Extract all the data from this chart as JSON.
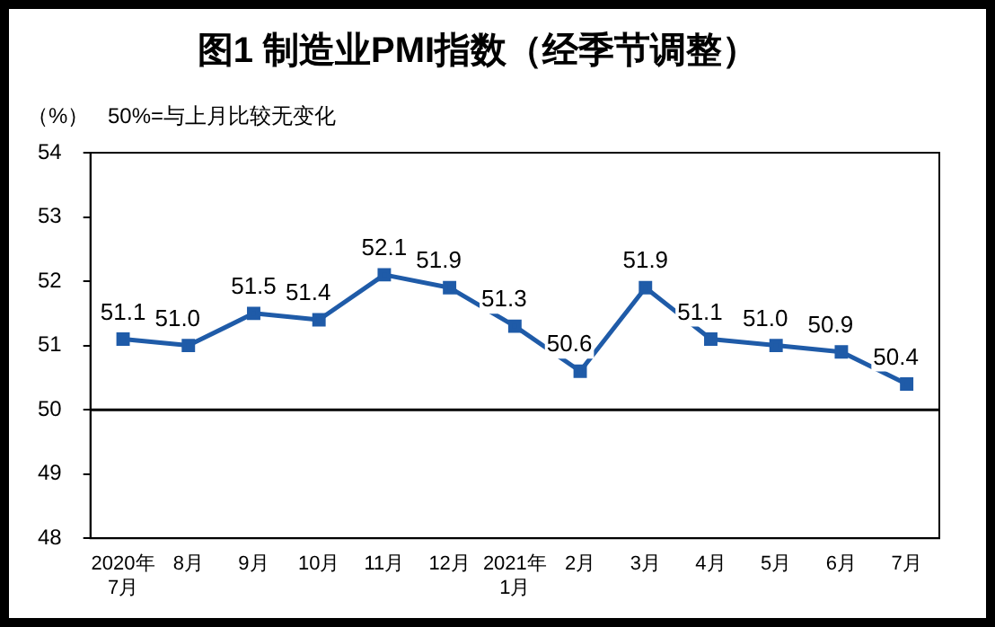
{
  "chart_data": {
    "type": "line",
    "title": "图1 制造业PMI指数（经季节调整）",
    "ylabel": "（%）",
    "annotations": [
      "50%=与上月比较无变化"
    ],
    "categories": [
      "2020年7月",
      "8月",
      "9月",
      "10月",
      "11月",
      "12月",
      "2021年1月",
      "2月",
      "3月",
      "4月",
      "5月",
      "6月",
      "7月"
    ],
    "series": [
      {
        "color": "#1f5ba8",
        "values": [
          51.1,
          51.0,
          51.5,
          51.4,
          52.1,
          51.9,
          51.3,
          50.6,
          51.9,
          51.1,
          51.0,
          50.9,
          50.4
        ],
        "value_labels": [
          "51.1",
          "51.0",
          "51.5",
          "51.4",
          "52.1",
          "51.9",
          "51.3",
          "50.6",
          "51.9",
          "51.1",
          "51.0",
          "50.9",
          "50.4"
        ]
      }
    ],
    "ylim": [
      48,
      54
    ],
    "yticks": [
      48,
      49,
      50,
      51,
      52,
      53,
      54
    ],
    "ref_lines": [
      {
        "axis": "y",
        "value": 50,
        "color": "#000000"
      }
    ],
    "grid": false,
    "legend": false,
    "marker": "square",
    "line_style": "solid"
  }
}
